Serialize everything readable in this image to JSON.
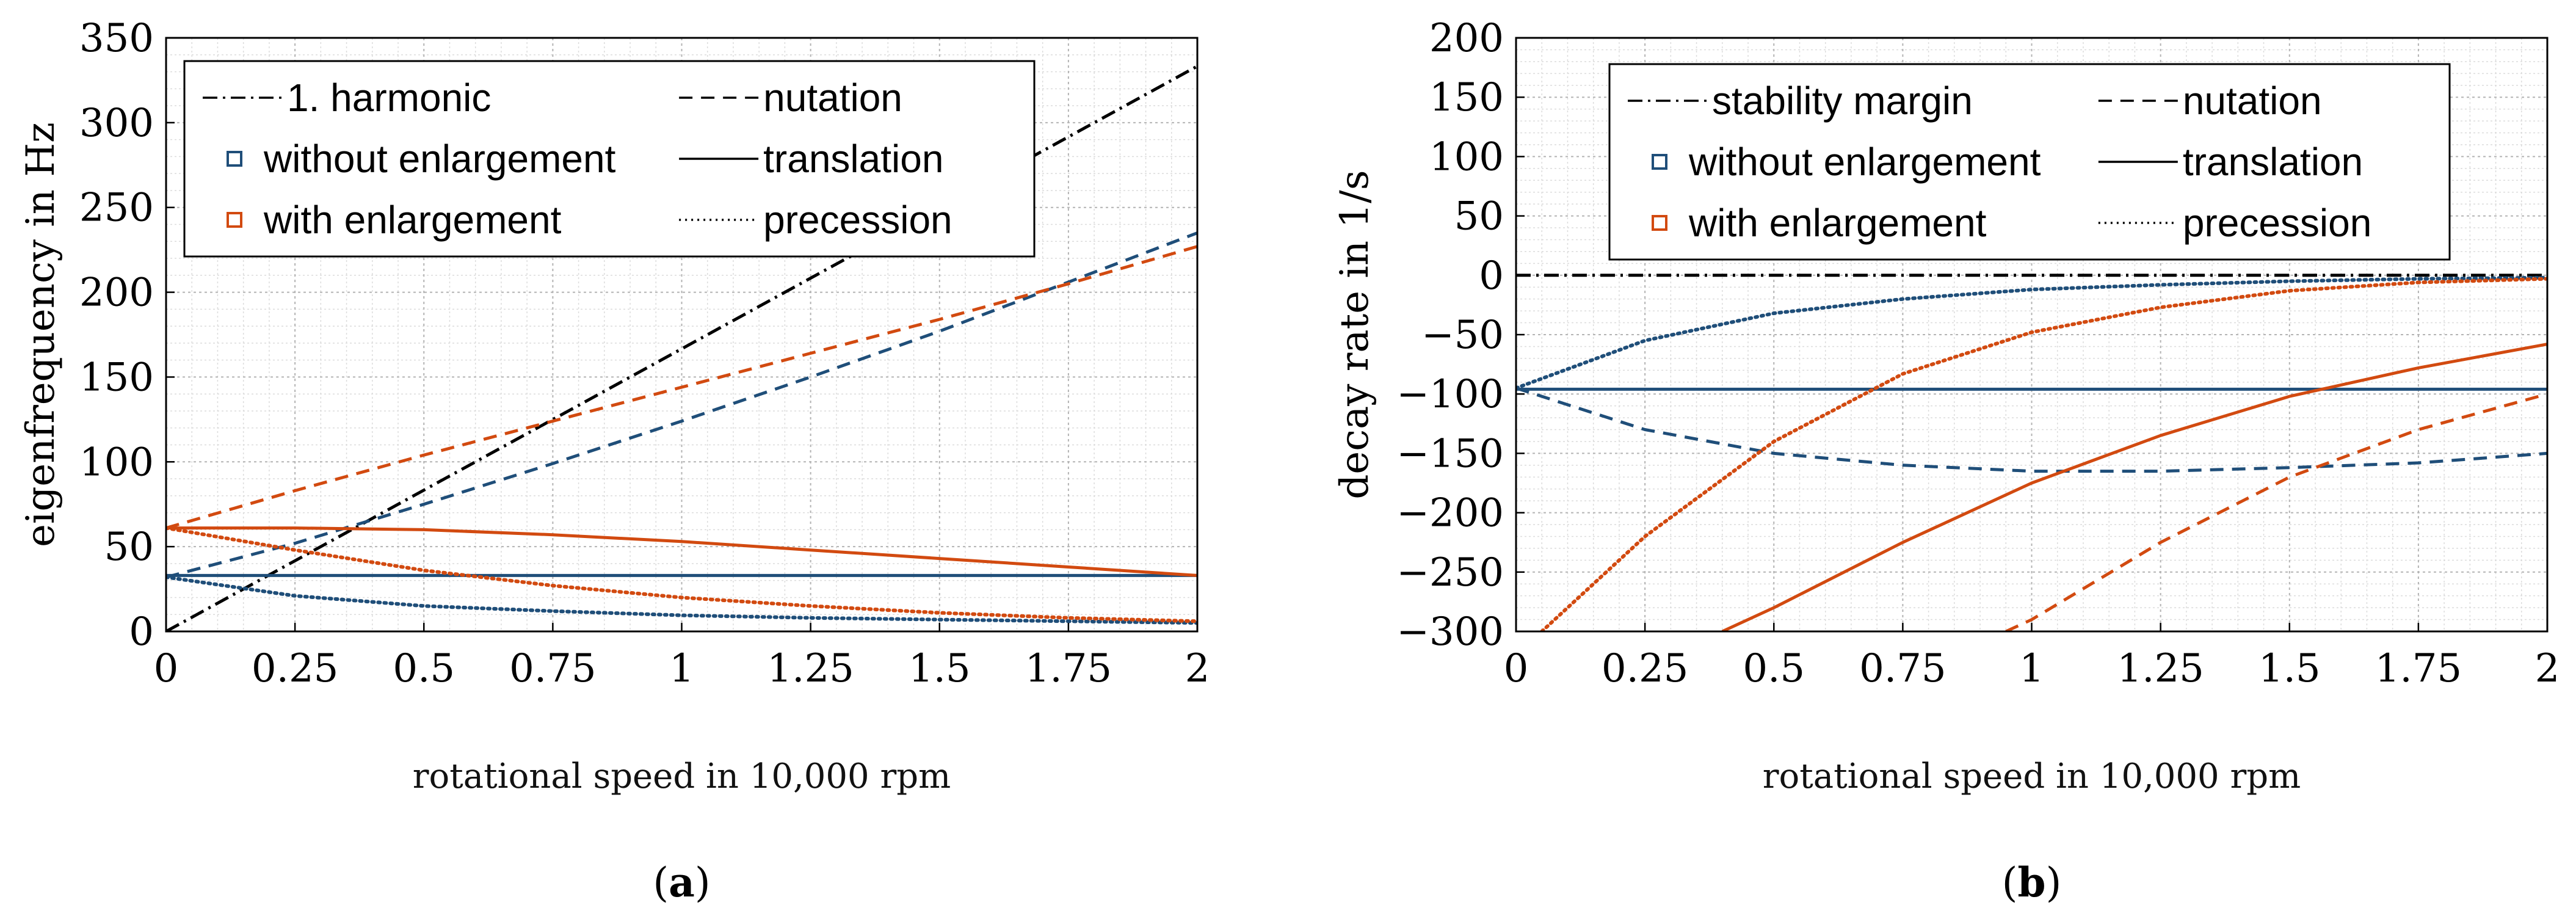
{
  "colors": {
    "without": "#1f4e79",
    "with": "#d24a10",
    "black": "#000000"
  },
  "chart_data": [
    {
      "type": "line",
      "panel_letter": "a",
      "panel_label_prefix": "(",
      "panel_label_suffix": ")",
      "xlabel": "rotational speed in 10,000 rpm",
      "ylabel": "eigenfrequency in Hz",
      "xlim": [
        0,
        2
      ],
      "ylim": [
        0,
        350
      ],
      "xticks": [
        0,
        0.25,
        0.5,
        0.75,
        1,
        1.25,
        1.5,
        1.75,
        2
      ],
      "xtick_labels": [
        "0",
        "0.25",
        "0.5",
        "0.75",
        "1",
        "1.25",
        "1.5",
        "1.75",
        "2"
      ],
      "yticks": [
        0,
        50,
        100,
        150,
        200,
        250,
        300,
        350
      ],
      "ytick_labels": [
        "0",
        "50",
        "100",
        "150",
        "200",
        "250",
        "300",
        "350"
      ],
      "grid": true,
      "legend": {
        "placement": "top-left",
        "left_column": [
          {
            "label": "1. harmonic",
            "symbol": "dashdot",
            "color": "#000000"
          },
          {
            "label": "without enlargement",
            "symbol": "square",
            "color": "#1f4e79"
          },
          {
            "label": "with enlargement",
            "symbol": "square",
            "color": "#d24a10"
          }
        ],
        "right_column": [
          {
            "label": "nutation",
            "symbol": "dashed",
            "color": "#000000"
          },
          {
            "label": "translation",
            "symbol": "solid",
            "color": "#000000"
          },
          {
            "label": "precession",
            "symbol": "dotted",
            "color": "#000000"
          }
        ]
      },
      "series": [
        {
          "name": "1. harmonic",
          "style": "dashdot",
          "color": "#000000",
          "x": [
            0,
            2
          ],
          "y": [
            0,
            333.3
          ]
        },
        {
          "name": "nutation, without enlargement",
          "style": "dashed",
          "color": "#1f4e79",
          "x": [
            0,
            0.25,
            0.5,
            0.75,
            1,
            1.25,
            1.5,
            1.75,
            2
          ],
          "y": [
            32,
            52,
            75,
            99,
            124,
            150,
            177,
            206,
            235
          ]
        },
        {
          "name": "nutation, with enlargement",
          "style": "dashed",
          "color": "#d24a10",
          "x": [
            0,
            0.25,
            0.5,
            0.75,
            1,
            1.25,
            1.5,
            1.75,
            2
          ],
          "y": [
            61,
            83,
            104,
            124,
            144,
            164,
            184,
            205,
            227
          ]
        },
        {
          "name": "translation, without enlargement",
          "style": "solid",
          "color": "#1f4e79",
          "x": [
            0,
            2
          ],
          "y": [
            33,
            33
          ]
        },
        {
          "name": "translation, with enlargement",
          "style": "solid",
          "color": "#d24a10",
          "x": [
            0,
            0.25,
            0.5,
            0.75,
            1,
            1.25,
            1.5,
            1.75,
            2
          ],
          "y": [
            61,
            61,
            60,
            57,
            53,
            48,
            43,
            38,
            33
          ]
        },
        {
          "name": "precession, without enlargement",
          "style": "dotted",
          "color": "#1f4e79",
          "x": [
            0,
            0.25,
            0.5,
            0.75,
            1,
            1.25,
            1.5,
            1.75,
            2
          ],
          "y": [
            32,
            21,
            15,
            12,
            9.5,
            8,
            7,
            6,
            5
          ]
        },
        {
          "name": "precession, with enlargement",
          "style": "dotted",
          "color": "#d24a10",
          "x": [
            0,
            0.25,
            0.5,
            0.75,
            1,
            1.25,
            1.5,
            1.75,
            2
          ],
          "y": [
            61,
            48,
            36,
            27,
            20,
            15,
            11,
            8,
            6
          ]
        }
      ]
    },
    {
      "type": "line",
      "panel_letter": "b",
      "panel_label_prefix": "(",
      "panel_label_suffix": ")",
      "xlabel": "rotational speed in 10,000 rpm",
      "ylabel": "decay rate in 1/s",
      "xlim": [
        0,
        2
      ],
      "ylim": [
        -300,
        200
      ],
      "xticks": [
        0,
        0.25,
        0.5,
        0.75,
        1,
        1.25,
        1.5,
        1.75,
        2
      ],
      "xtick_labels": [
        "0",
        "0.25",
        "0.5",
        "0.75",
        "1",
        "1.25",
        "1.5",
        "1.75",
        "2"
      ],
      "yticks": [
        -300,
        -250,
        -200,
        -150,
        -100,
        -50,
        0,
        50,
        100,
        150,
        200
      ],
      "ytick_labels": [
        "−300",
        "−250",
        "−200",
        "−150",
        "−100",
        "−50",
        "0",
        "50",
        "100",
        "150",
        "200"
      ],
      "grid": true,
      "legend": {
        "placement": "top-right",
        "left_column": [
          {
            "label": "stability margin",
            "symbol": "dashdot",
            "color": "#000000"
          },
          {
            "label": "without enlargement",
            "symbol": "square",
            "color": "#1f4e79"
          },
          {
            "label": "with enlargement",
            "symbol": "square",
            "color": "#d24a10"
          }
        ],
        "right_column": [
          {
            "label": "nutation",
            "symbol": "dashed",
            "color": "#000000"
          },
          {
            "label": "translation",
            "symbol": "solid",
            "color": "#000000"
          },
          {
            "label": "precession",
            "symbol": "dotted",
            "color": "#000000"
          }
        ]
      },
      "series": [
        {
          "name": "stability margin",
          "style": "dashdot",
          "color": "#000000",
          "x": [
            0,
            2
          ],
          "y": [
            0,
            0
          ]
        },
        {
          "name": "translation, without enlargement",
          "style": "solid",
          "color": "#1f4e79",
          "x": [
            0,
            2
          ],
          "y": [
            -96,
            -96
          ]
        },
        {
          "name": "nutation, without enlargement",
          "style": "dashed",
          "color": "#1f4e79",
          "x": [
            0,
            0.25,
            0.5,
            0.75,
            1,
            1.25,
            1.5,
            1.75,
            2
          ],
          "y": [
            -95,
            -130,
            -150,
            -160,
            -165,
            -165,
            -162,
            -158,
            -150
          ]
        },
        {
          "name": "precession, without enlargement",
          "style": "dotted",
          "color": "#1f4e79",
          "x": [
            0,
            0.25,
            0.5,
            0.75,
            1,
            1.25,
            1.5,
            1.75,
            2
          ],
          "y": [
            -95,
            -55,
            -32,
            -20,
            -12,
            -8,
            -5,
            -3,
            -2
          ]
        },
        {
          "name": "precession, with enlargement",
          "style": "dotted",
          "color": "#d24a10",
          "x": [
            0.05,
            0.25,
            0.5,
            0.75,
            1,
            1.25,
            1.5,
            1.75,
            2
          ],
          "y": [
            -300,
            -220,
            -140,
            -83,
            -48,
            -27,
            -13,
            -6,
            -3
          ]
        },
        {
          "name": "translation, with enlargement",
          "style": "solid",
          "color": "#d24a10",
          "x": [
            0.4,
            0.5,
            0.75,
            1,
            1.25,
            1.5,
            1.75,
            2
          ],
          "y": [
            -300,
            -280,
            -225,
            -175,
            -135,
            -102,
            -78,
            -58
          ]
        },
        {
          "name": "nutation, with enlargement",
          "style": "dashed",
          "color": "#d24a10",
          "x": [
            0.95,
            1,
            1.25,
            1.5,
            1.75,
            2
          ],
          "y": [
            -300,
            -290,
            -225,
            -170,
            -130,
            -100
          ]
        }
      ]
    }
  ]
}
